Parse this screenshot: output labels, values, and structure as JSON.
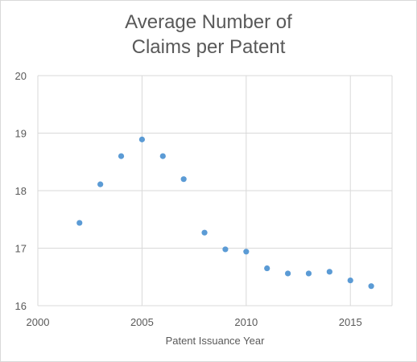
{
  "chart_data": {
    "type": "scatter",
    "title_lines": [
      "Average Number of",
      "Claims per Patent"
    ],
    "xlabel": "Patent Issuance Year",
    "ylabel": "",
    "xlim": [
      2000,
      2017
    ],
    "ylim": [
      16,
      20
    ],
    "x_ticks": [
      2000,
      2005,
      2010,
      2015
    ],
    "y_ticks": [
      16,
      17,
      18,
      19,
      20
    ],
    "grid": "both-major",
    "legend": "none",
    "marker_color": "#5b9bd5",
    "grid_color": "#d9d9d9",
    "series": [
      {
        "x": [
          2002,
          2003,
          2004,
          2005,
          2006,
          2007,
          2008,
          2009,
          2010,
          2011,
          2012,
          2013,
          2014,
          2015,
          2016
        ],
        "y": [
          17.44,
          18.11,
          18.6,
          18.89,
          18.6,
          18.2,
          17.27,
          16.98,
          16.94,
          16.65,
          16.56,
          16.56,
          16.59,
          16.44,
          16.34
        ]
      }
    ]
  }
}
